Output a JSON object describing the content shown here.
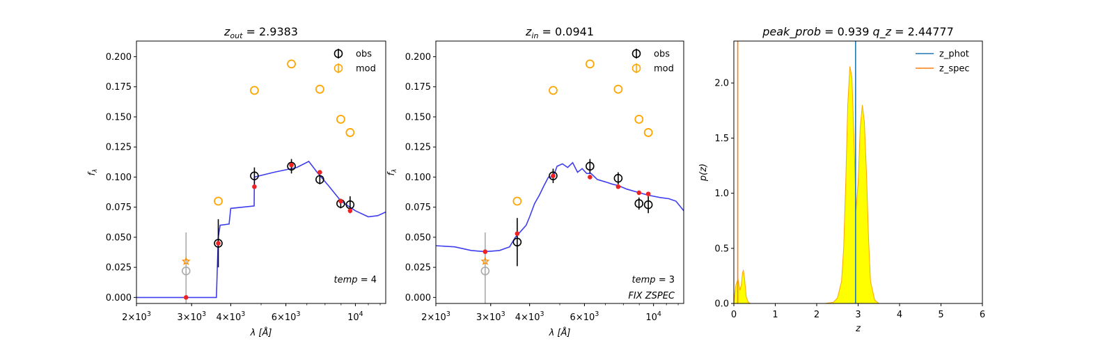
{
  "chart_data": [
    {
      "type": "scatter",
      "panel": "sed-out",
      "title_var": "z",
      "title_sub": "out",
      "title_value": "2.9383",
      "xlabel_var": "λ",
      "xlabel_unit": "[Å]",
      "ylabel_var": "f",
      "ylabel_sub": "λ",
      "xscale": "log",
      "xlim": [
        2000,
        12500
      ],
      "ylim": [
        -0.005,
        0.213
      ],
      "xticks_major": [
        {
          "value": 2000,
          "mant": "2",
          "exp": "3"
        },
        {
          "value": 3000,
          "mant": "3",
          "exp": "3"
        },
        {
          "value": 4000,
          "mant": "4",
          "exp": "3"
        },
        {
          "value": 6000,
          "mant": "6",
          "exp": "3"
        },
        {
          "value": 10000,
          "mant": "10",
          "exp": "4"
        }
      ],
      "yticks": [
        "0.000",
        "0.025",
        "0.050",
        "0.075",
        "0.100",
        "0.125",
        "0.150",
        "0.175",
        "0.200"
      ],
      "legend": [
        {
          "label": "obs",
          "color": "#000000"
        },
        {
          "label": "mod",
          "color": "#ffa500"
        }
      ],
      "annotations": [
        {
          "var": "temp",
          "value": "4"
        }
      ],
      "model_curve_color": "#3333ee",
      "model_curve": [
        [
          2000,
          0.0
        ],
        [
          3600,
          0.0
        ],
        [
          3650,
          0.05
        ],
        [
          3700,
          0.06
        ],
        [
          3950,
          0.061
        ],
        [
          4000,
          0.074
        ],
        [
          4750,
          0.076
        ],
        [
          4760,
          0.1
        ],
        [
          5500,
          0.104
        ],
        [
          6500,
          0.108
        ],
        [
          7100,
          0.113
        ],
        [
          7600,
          0.103
        ],
        [
          8200,
          0.093
        ],
        [
          9000,
          0.08
        ],
        [
          10000,
          0.072
        ],
        [
          11000,
          0.067
        ],
        [
          11800,
          0.068
        ],
        [
          12500,
          0.071
        ]
      ],
      "obs": [
        {
          "x": 3650,
          "y": 0.045,
          "err": 0.02
        },
        {
          "x": 4760,
          "y": 0.101,
          "err": 0.007
        },
        {
          "x": 6250,
          "y": 0.109,
          "err": 0.006
        },
        {
          "x": 7700,
          "y": 0.098,
          "err": 0.004
        },
        {
          "x": 8980,
          "y": 0.078,
          "err": 0.004
        },
        {
          "x": 9620,
          "y": 0.077,
          "err": 0.007
        }
      ],
      "mod": [
        {
          "x": 3650,
          "y": 0.08
        },
        {
          "x": 4760,
          "y": 0.172
        },
        {
          "x": 6250,
          "y": 0.194
        },
        {
          "x": 7700,
          "y": 0.173
        },
        {
          "x": 8980,
          "y": 0.148
        },
        {
          "x": 9620,
          "y": 0.137
        }
      ],
      "model_points": [
        {
          "x": 2880,
          "y": 0.0
        },
        {
          "x": 3650,
          "y": 0.045
        },
        {
          "x": 4760,
          "y": 0.092
        },
        {
          "x": 6250,
          "y": 0.11
        },
        {
          "x": 7700,
          "y": 0.104
        },
        {
          "x": 8980,
          "y": 0.08
        },
        {
          "x": 9620,
          "y": 0.072
        }
      ],
      "grey_point": {
        "x": 2880,
        "y": 0.022,
        "err": 0.032
      },
      "star_point": {
        "x": 2880,
        "y": 0.03
      }
    },
    {
      "type": "scatter",
      "panel": "sed-in",
      "title_var": "z",
      "title_sub": "in",
      "title_value": "0.0941",
      "xlabel_var": "λ",
      "xlabel_unit": "[Å]",
      "ylabel_var": "f",
      "ylabel_sub": "λ",
      "xscale": "log",
      "xlim": [
        2000,
        12500
      ],
      "ylim": [
        -0.005,
        0.213
      ],
      "xticks_major": [
        {
          "value": 2000,
          "mant": "2",
          "exp": "3"
        },
        {
          "value": 3000,
          "mant": "3",
          "exp": "3"
        },
        {
          "value": 4000,
          "mant": "4",
          "exp": "3"
        },
        {
          "value": 6000,
          "mant": "6",
          "exp": "3"
        },
        {
          "value": 10000,
          "mant": "10",
          "exp": "4"
        }
      ],
      "yticks": [
        "0.000",
        "0.025",
        "0.050",
        "0.075",
        "0.100",
        "0.125",
        "0.150",
        "0.175",
        "0.200"
      ],
      "legend": [
        {
          "label": "obs",
          "color": "#000000"
        },
        {
          "label": "mod",
          "color": "#ffa500"
        }
      ],
      "annotations": [
        {
          "var": "temp",
          "value": "3"
        },
        {
          "text": "FIX ZSPEC"
        }
      ],
      "model_curve_color": "#3333ee",
      "model_curve": [
        [
          2000,
          0.043
        ],
        [
          2300,
          0.042
        ],
        [
          2600,
          0.039
        ],
        [
          2880,
          0.038
        ],
        [
          3200,
          0.039
        ],
        [
          3450,
          0.042
        ],
        [
          3600,
          0.05
        ],
        [
          3750,
          0.055
        ],
        [
          3900,
          0.06
        ],
        [
          4000,
          0.067
        ],
        [
          4150,
          0.078
        ],
        [
          4300,
          0.085
        ],
        [
          4450,
          0.093
        ],
        [
          4600,
          0.1
        ],
        [
          4760,
          0.1
        ],
        [
          4900,
          0.109
        ],
        [
          5100,
          0.111
        ],
        [
          5300,
          0.108
        ],
        [
          5500,
          0.112
        ],
        [
          5700,
          0.104
        ],
        [
          5900,
          0.107
        ],
        [
          6100,
          0.103
        ],
        [
          6300,
          0.103
        ],
        [
          6600,
          0.098
        ],
        [
          7000,
          0.096
        ],
        [
          7400,
          0.094
        ],
        [
          7700,
          0.093
        ],
        [
          8200,
          0.09
        ],
        [
          9000,
          0.087
        ],
        [
          9600,
          0.085
        ],
        [
          10500,
          0.083
        ],
        [
          11200,
          0.082
        ],
        [
          11800,
          0.08
        ],
        [
          12500,
          0.072
        ]
      ],
      "obs": [
        {
          "x": 3650,
          "y": 0.046,
          "err": 0.02
        },
        {
          "x": 4760,
          "y": 0.101,
          "err": 0.006
        },
        {
          "x": 6250,
          "y": 0.109,
          "err": 0.006
        },
        {
          "x": 7700,
          "y": 0.099,
          "err": 0.005
        },
        {
          "x": 8980,
          "y": 0.078,
          "err": 0.005
        },
        {
          "x": 9620,
          "y": 0.077,
          "err": 0.007
        }
      ],
      "mod": [
        {
          "x": 3650,
          "y": 0.08
        },
        {
          "x": 4760,
          "y": 0.172
        },
        {
          "x": 6250,
          "y": 0.194
        },
        {
          "x": 7700,
          "y": 0.173
        },
        {
          "x": 8980,
          "y": 0.148
        },
        {
          "x": 9620,
          "y": 0.137
        }
      ],
      "model_points": [
        {
          "x": 2880,
          "y": 0.038
        },
        {
          "x": 3650,
          "y": 0.053
        },
        {
          "x": 4760,
          "y": 0.101
        },
        {
          "x": 6250,
          "y": 0.1
        },
        {
          "x": 7700,
          "y": 0.092
        },
        {
          "x": 8980,
          "y": 0.087
        },
        {
          "x": 9620,
          "y": 0.086
        }
      ],
      "grey_point": {
        "x": 2880,
        "y": 0.022,
        "err": 0.032
      },
      "star_point": {
        "x": 2880,
        "y": 0.03
      }
    },
    {
      "type": "area",
      "panel": "pz",
      "title_parts": [
        {
          "var": "peak_prob",
          "value": "0.939"
        },
        {
          "var": "q_z",
          "value": "2.44777"
        }
      ],
      "xlabel_var": "z",
      "ylabel_var": "p(z)",
      "xlim": [
        0,
        6
      ],
      "ylim": [
        0,
        2.38
      ],
      "xticks": [
        "0",
        "1",
        "2",
        "3",
        "4",
        "5",
        "6"
      ],
      "yticks": [
        "0.0",
        "0.5",
        "1.0",
        "1.5",
        "2.0"
      ],
      "legend": [
        {
          "label": "z_phot",
          "color": "#1f77b4"
        },
        {
          "label": "z_spec",
          "color": "#ff7f0e"
        }
      ],
      "fill_color": "#ffff00",
      "edge_color": "#ffa500",
      "z_phot": 2.9383,
      "z_spec": 0.0941,
      "pz": [
        [
          0,
          0
        ],
        [
          0.02,
          0.08
        ],
        [
          0.05,
          0.17
        ],
        [
          0.08,
          0.2
        ],
        [
          0.1,
          0.22
        ],
        [
          0.12,
          0.18
        ],
        [
          0.15,
          0.12
        ],
        [
          0.18,
          0.17
        ],
        [
          0.21,
          0.28
        ],
        [
          0.23,
          0.3
        ],
        [
          0.26,
          0.22
        ],
        [
          0.3,
          0.06
        ],
        [
          0.35,
          0.01
        ],
        [
          0.4,
          0.0
        ],
        [
          2.2,
          0.0
        ],
        [
          2.4,
          0.01
        ],
        [
          2.5,
          0.05
        ],
        [
          2.6,
          0.2
        ],
        [
          2.65,
          0.5
        ],
        [
          2.7,
          1.1
        ],
        [
          2.75,
          1.8
        ],
        [
          2.8,
          2.15
        ],
        [
          2.85,
          2.05
        ],
        [
          2.9,
          1.5
        ],
        [
          2.95,
          0.85
        ],
        [
          3.0,
          1.1
        ],
        [
          3.05,
          1.6
        ],
        [
          3.1,
          1.8
        ],
        [
          3.15,
          1.65
        ],
        [
          3.2,
          1.2
        ],
        [
          3.25,
          0.6
        ],
        [
          3.3,
          0.2
        ],
        [
          3.4,
          0.03
        ],
        [
          3.5,
          0.0
        ],
        [
          5.0,
          0.0
        ]
      ]
    }
  ]
}
